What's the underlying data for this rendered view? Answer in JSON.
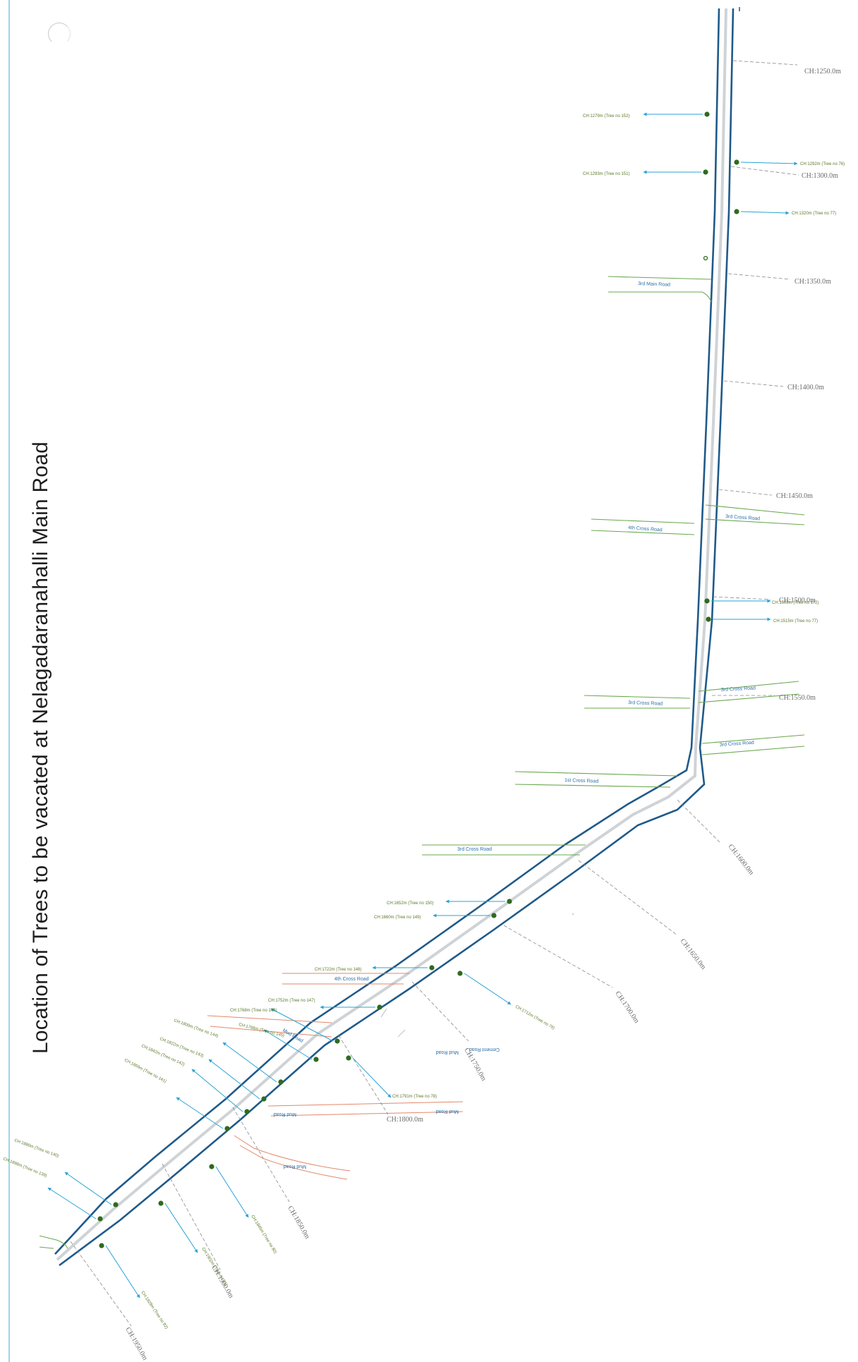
{
  "title": "Location of Trees to be vacated at Nelagadaranahalli Main Road",
  "colors": {
    "road_outline": "#1f5a8a",
    "road_center": "#cfd3d6",
    "side_road_green": "#6aa84f",
    "side_road_orange": "#e0896a",
    "tree_marker": "#2e6b1e",
    "arrow": "#2aa3d4",
    "chainage_line": "#8a8a8a"
  },
  "chainages": [
    "CH:1250.0m",
    "CH:1300.0m",
    "CH:1350.0m",
    "CH:1400.0m",
    "CH:1450.0m",
    "CH:1500.0m",
    "CH:1550.0m",
    "CH:1600.0m",
    "CH:1650.0m",
    "CH:1700.0m",
    "CH:1750.0m",
    "CH:1800.0m",
    "CH:1850.0m",
    "CH:1900.0m",
    "CH:1950.0m"
  ],
  "roads": [
    "3rd Main Road",
    "3rd Cross Road",
    "4th Cross Road",
    "3rd Cross Road",
    "3rd Cross Road",
    "3rd Cross Road",
    "1st Cross Road",
    "3rd Cross Road",
    "4th Cross Road",
    "Mud Road",
    "Mud Road",
    "Mud Road",
    "Mud Road",
    "Mud Road",
    "Cement Road"
  ],
  "trees": [
    "CH:1279m (Tree no 152)",
    "CH:1293m (Tree no 151)",
    "CH:1292m (Tree no 76)",
    "CH:1320m (Tree no 77)",
    "CH:1508m (Tree no 172)",
    "CH:1515m (Tree no 77)",
    "CH:1652m (Tree no 150)",
    "CH:1660m (Tree no 149)",
    "CH:1722m (Tree no 148)",
    "CH:1712m (Tree no 79)",
    "CH:1752m (Tree no 147)",
    "CH:1768m (Tree no 146)",
    "CH:1788m (Tree no 145)",
    "CH:1800m (Tree no 144)",
    "CH:1822m (Tree no 143)",
    "CH:1842m (Tree no 142)",
    "CH:1859m (Tree no 141)",
    "CH:1791m (Tree no 78)",
    "CH:1880m (Tree no 140)",
    "CH:1898m (Tree no 139)",
    "CH:1902m (Tree no 81)",
    "CH:1845m (Tree no 80)",
    "CH:1928m (Tree no 82)"
  ]
}
